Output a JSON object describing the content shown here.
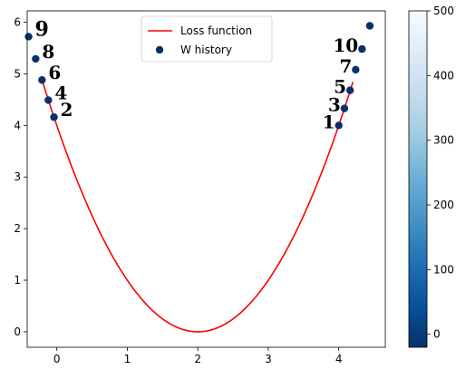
{
  "chart_data": {
    "type": "line",
    "xlim": [
      -0.42,
      4.66
    ],
    "ylim": [
      -0.3,
      6.22
    ],
    "xticks": [
      0,
      1,
      2,
      3,
      4
    ],
    "yticks": [
      0,
      1,
      2,
      3,
      4,
      5,
      6
    ],
    "grid": false,
    "legend_position": "top-center",
    "series": [
      {
        "name": "Loss function",
        "kind": "line",
        "color": "#ff0000",
        "function": "(x-2)^2",
        "x_range": [
          -0.2,
          4.2
        ]
      },
      {
        "name": "W history",
        "kind": "scatter",
        "color": "#08306b",
        "points": [
          {
            "label": "1",
            "x": 4.0,
            "y": 4.0
          },
          {
            "label": "2",
            "x": -0.04,
            "y": 4.16
          },
          {
            "label": "3",
            "x": 4.08,
            "y": 4.33
          },
          {
            "label": "4",
            "x": -0.12,
            "y": 4.49
          },
          {
            "label": "5",
            "x": 4.16,
            "y": 4.68
          },
          {
            "label": "6",
            "x": -0.21,
            "y": 4.88
          },
          {
            "label": "7",
            "x": 4.24,
            "y": 5.08
          },
          {
            "label": "8",
            "x": -0.3,
            "y": 5.29
          },
          {
            "label": "9",
            "x": -0.4,
            "y": 5.72
          },
          {
            "label": "10",
            "x": 4.33,
            "y": 5.48
          },
          {
            "label": "",
            "x": 4.44,
            "y": 5.93
          }
        ]
      }
    ],
    "colorbar": {
      "range": [
        -20,
        500
      ],
      "ticks": [
        0,
        100,
        200,
        300,
        400,
        500
      ],
      "colors": [
        "#08306b",
        "#08519c",
        "#2171b5",
        "#4292c6",
        "#6baed6",
        "#9ecae1",
        "#c6dbef",
        "#deebf7",
        "#f7fbff"
      ]
    }
  }
}
